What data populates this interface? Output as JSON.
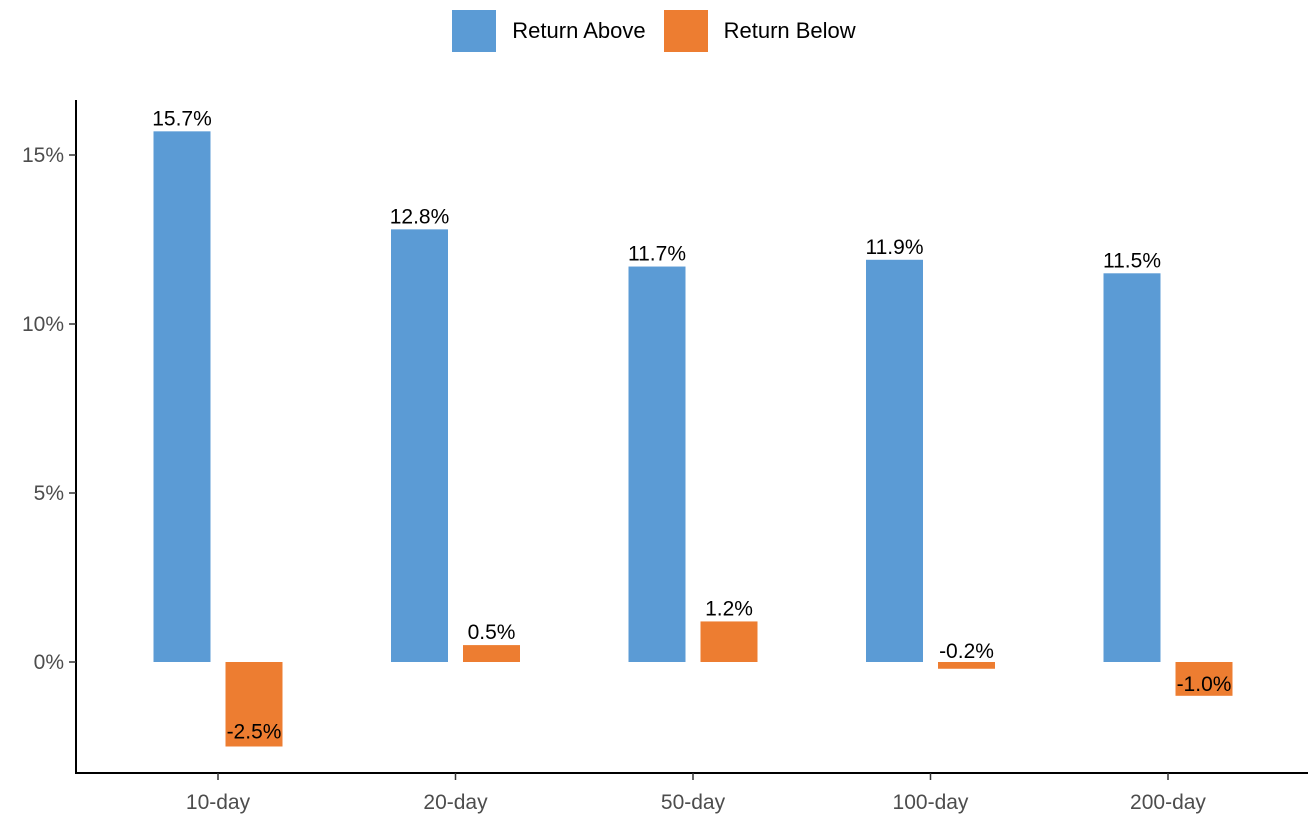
{
  "chart_data": {
    "type": "bar",
    "categories": [
      "10-day",
      "20-day",
      "50-day",
      "100-day",
      "200-day"
    ],
    "series": [
      {
        "name": "Return Above",
        "color": "#5b9bd5",
        "values": [
          15.7,
          12.8,
          11.7,
          11.9,
          11.5
        ],
        "labels": [
          "15.7%",
          "12.8%",
          "11.7%",
          "11.9%",
          "11.5%"
        ]
      },
      {
        "name": "Return Below",
        "color": "#ed7d31",
        "values": [
          -2.5,
          0.5,
          1.2,
          -0.2,
          -1.0
        ],
        "labels": [
          "-2.5%",
          "0.5%",
          "1.2%",
          "-0.2%",
          "-1.0%"
        ]
      }
    ],
    "yticks": [
      0,
      5,
      10,
      15
    ],
    "ytick_labels": [
      "0%",
      "5%",
      "10%",
      "15%"
    ],
    "ylim": [
      -3.3,
      16.7
    ],
    "legend_position": "top",
    "grid": false
  }
}
